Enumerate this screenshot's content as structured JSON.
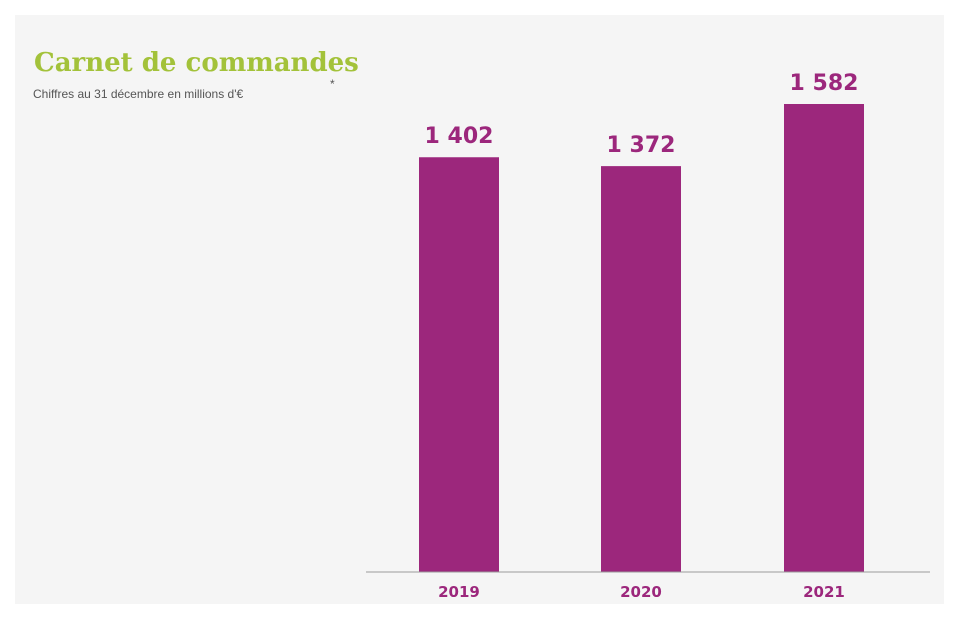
{
  "colors": {
    "bar": "#9c277c",
    "title": "#a3c23a",
    "label": "#9c277c",
    "axis": "#9a9a9a"
  },
  "chart_data": {
    "type": "bar",
    "title": "Carnet de commandes",
    "title_note": "*",
    "subtitle": "Chiffres au 31 décembre en millions d'€",
    "categories": [
      "2019",
      "2020",
      "2021"
    ],
    "values": [
      1402,
      1372,
      1582
    ],
    "value_labels": [
      "1 402",
      "1 372",
      "1 582"
    ],
    "ylim": [
      0,
      1582
    ],
    "grid": false,
    "legend": "none"
  }
}
